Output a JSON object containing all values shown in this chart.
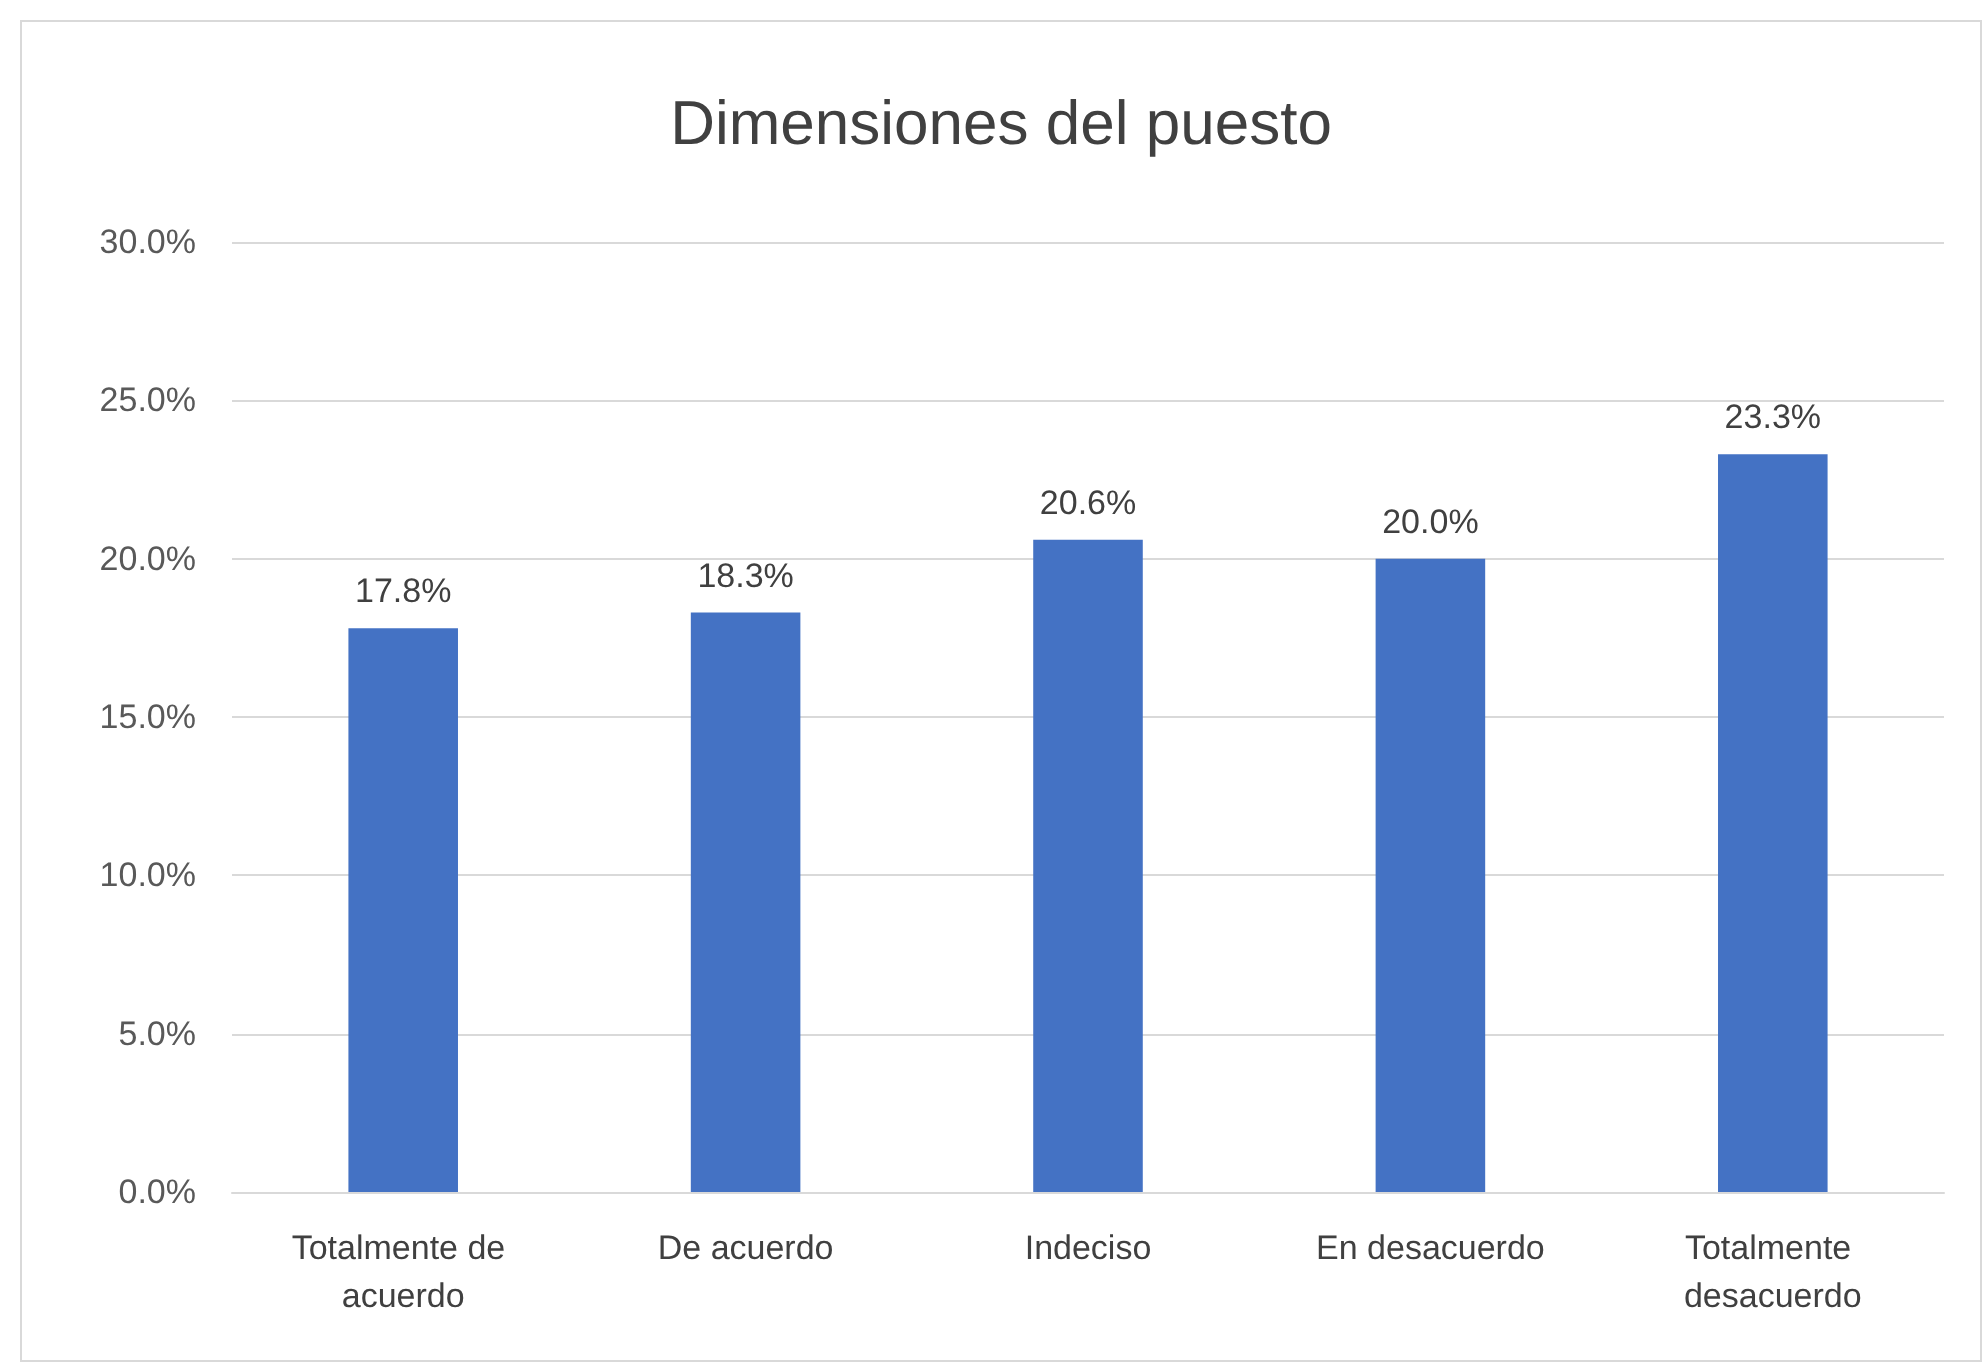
{
  "chart_data": {
    "type": "bar",
    "title": "Dimensiones del puesto",
    "categories": [
      "Totalmente de acuerdo",
      "De acuerdo",
      "Indeciso",
      "En desacuerdo",
      "Totalmente desacuerdo"
    ],
    "values": [
      17.8,
      18.3,
      20.6,
      20.0,
      23.3
    ],
    "value_labels": [
      "17.8%",
      "18.3%",
      "20.6%",
      "20.0%",
      "23.3%"
    ],
    "color": "#4472c4",
    "ylim": [
      0,
      30
    ],
    "yticks": [
      {
        "value": 0,
        "label": "0.0%"
      },
      {
        "value": 5,
        "label": "5.0%"
      },
      {
        "value": 10,
        "label": "10.0%"
      },
      {
        "value": 15,
        "label": "15.0%"
      },
      {
        "value": 20,
        "label": "20.0%"
      },
      {
        "value": 25,
        "label": "25.0%"
      },
      {
        "value": 30,
        "label": "30.0%"
      }
    ],
    "grid": "y"
  }
}
